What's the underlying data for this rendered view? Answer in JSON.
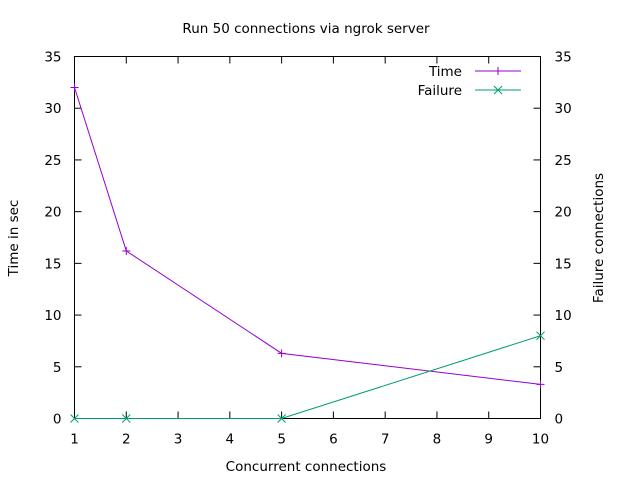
{
  "chart_data": {
    "type": "line",
    "title": "Run 50 connections via ngrok server",
    "xlabel": "Concurrent connections",
    "ylabel": "Time in sec",
    "y2label": "Failure connections",
    "xlim": [
      1,
      10
    ],
    "ylim": [
      0,
      35
    ],
    "y2lim": [
      0,
      35
    ],
    "xticks": [
      "1",
      "2",
      "3",
      "4",
      "5",
      "6",
      "7",
      "8",
      "9",
      "10"
    ],
    "yticks": [
      "0",
      "5",
      "10",
      "15",
      "20",
      "25",
      "30",
      "35"
    ],
    "y2ticks": [
      "0",
      "5",
      "10",
      "15",
      "20",
      "25",
      "30",
      "35"
    ],
    "grid": false,
    "legend_position": "top-right",
    "series": [
      {
        "name": "Time",
        "color": "#9400d3",
        "marker": "plus",
        "x": [
          1,
          2,
          5,
          10
        ],
        "y": [
          32,
          16.2,
          6.3,
          3.3
        ]
      },
      {
        "name": "Failure",
        "color": "#009e73",
        "marker": "cross",
        "x": [
          1,
          2,
          5,
          10
        ],
        "y": [
          0,
          0,
          0,
          8
        ]
      }
    ]
  }
}
